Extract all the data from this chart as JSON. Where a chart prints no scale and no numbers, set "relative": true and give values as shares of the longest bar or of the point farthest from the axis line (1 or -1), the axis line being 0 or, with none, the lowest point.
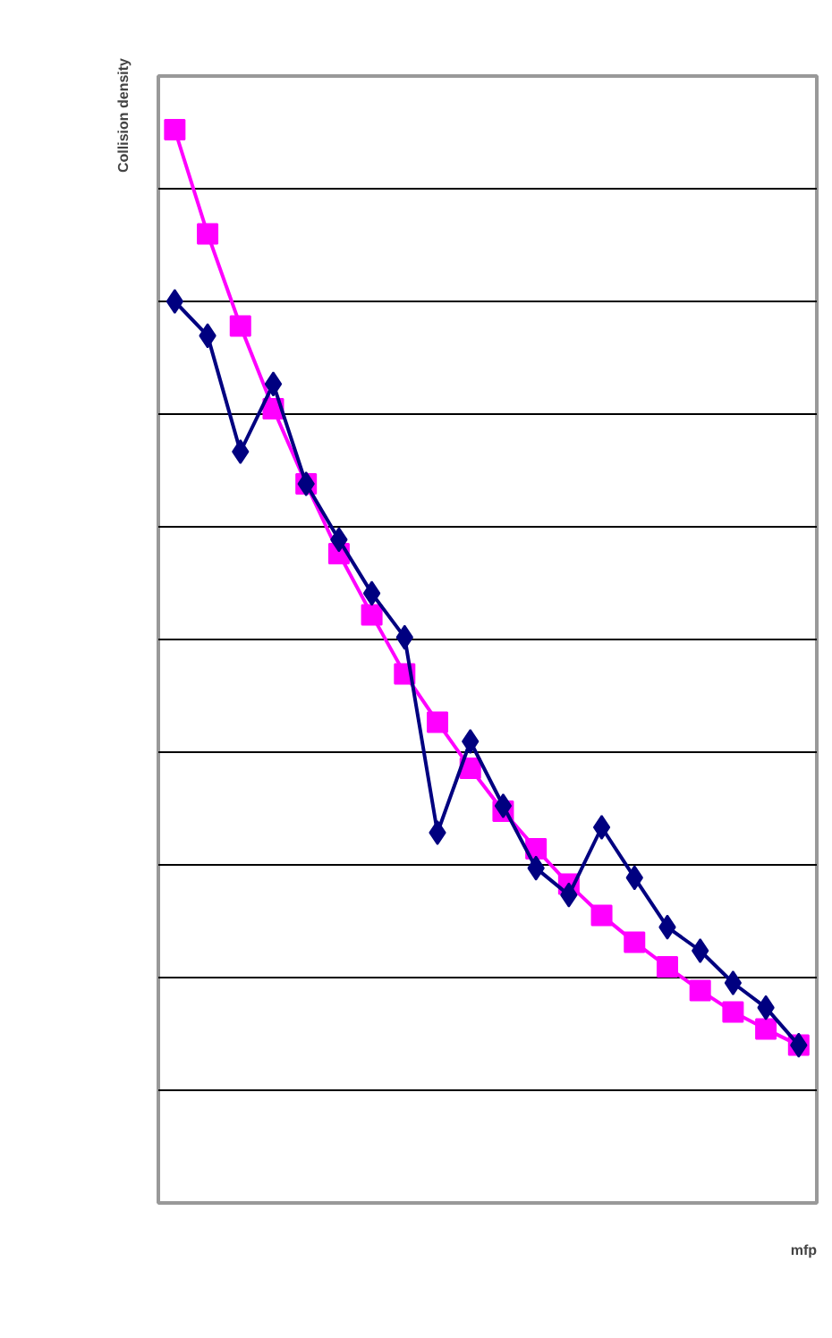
{
  "chart_data": {
    "type": "line",
    "relative": true,
    "ylabel": "Collision density",
    "xlabel": "mfp",
    "grid": "y",
    "categories": [
      null,
      null,
      null,
      null,
      null,
      null,
      null,
      null,
      null,
      null,
      null,
      null,
      null,
      null,
      null,
      null,
      null,
      null,
      null,
      null
    ],
    "series": [
      {
        "color": "#ff00ff",
        "marker": "square",
        "values": [
          1.0,
          0.903,
          0.817,
          0.74,
          0.67,
          0.605,
          0.548,
          0.493,
          0.448,
          0.405,
          0.365,
          0.33,
          0.297,
          0.268,
          0.243,
          0.22,
          0.198,
          0.178,
          0.162,
          0.147
        ]
      },
      {
        "color": "#000080",
        "marker": "diamond",
        "values": [
          0.84,
          0.808,
          0.7,
          0.763,
          0.67,
          0.618,
          0.568,
          0.527,
          0.345,
          0.43,
          0.37,
          0.312,
          0.287,
          0.35,
          0.303,
          0.257,
          0.235,
          0.205,
          0.182,
          0.147
        ]
      }
    ]
  }
}
